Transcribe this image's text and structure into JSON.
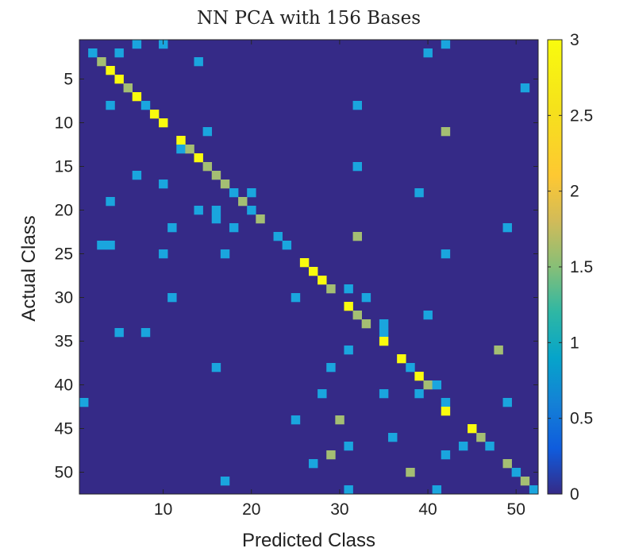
{
  "chart_data": {
    "type": "heatmap",
    "title": "NN PCA with 156 Bases",
    "xlabel": "Predicted Class",
    "ylabel": "Actual Class",
    "n_classes": 52,
    "xlim": [
      1,
      52
    ],
    "ylim": [
      1,
      52
    ],
    "x_ticks": [
      10,
      20,
      30,
      40,
      50
    ],
    "y_ticks": [
      5,
      10,
      15,
      20,
      25,
      30,
      35,
      40,
      45,
      50
    ],
    "colorbar": {
      "range": [
        0,
        3
      ],
      "ticks": [
        0,
        0.5,
        1,
        1.5,
        2,
        2.5,
        3
      ]
    },
    "colormap": "parula",
    "colors": {
      "zero": "#352A87",
      "one": "#1AA5DE",
      "two": "#A4BE73",
      "three": "#F9FB0E"
    },
    "cells": [
      [
        1,
        7,
        1
      ],
      [
        1,
        10,
        1
      ],
      [
        1,
        42,
        1
      ],
      [
        2,
        2,
        1
      ],
      [
        2,
        5,
        1
      ],
      [
        2,
        40,
        1
      ],
      [
        3,
        3,
        2
      ],
      [
        3,
        14,
        1
      ],
      [
        4,
        4,
        3
      ],
      [
        5,
        5,
        3
      ],
      [
        6,
        6,
        2
      ],
      [
        6,
        51,
        1
      ],
      [
        7,
        7,
        3
      ],
      [
        8,
        4,
        1
      ],
      [
        8,
        8,
        1
      ],
      [
        8,
        32,
        1
      ],
      [
        9,
        9,
        3
      ],
      [
        10,
        10,
        3
      ],
      [
        11,
        15,
        1
      ],
      [
        11,
        42,
        2
      ],
      [
        12,
        12,
        3
      ],
      [
        13,
        12,
        1
      ],
      [
        13,
        13,
        2
      ],
      [
        14,
        14,
        3
      ],
      [
        15,
        15,
        2
      ],
      [
        15,
        32,
        1
      ],
      [
        16,
        7,
        1
      ],
      [
        16,
        16,
        2
      ],
      [
        17,
        10,
        1
      ],
      [
        17,
        17,
        2
      ],
      [
        18,
        18,
        1
      ],
      [
        18,
        20,
        1
      ],
      [
        18,
        39,
        1
      ],
      [
        19,
        4,
        1
      ],
      [
        19,
        19,
        2
      ],
      [
        20,
        14,
        1
      ],
      [
        20,
        16,
        1
      ],
      [
        20,
        20,
        1
      ],
      [
        21,
        16,
        1
      ],
      [
        21,
        21,
        2
      ],
      [
        22,
        11,
        1
      ],
      [
        22,
        18,
        1
      ],
      [
        22,
        49,
        1
      ],
      [
        23,
        23,
        1
      ],
      [
        23,
        32,
        2
      ],
      [
        24,
        3,
        1
      ],
      [
        24,
        4,
        1
      ],
      [
        24,
        24,
        1
      ],
      [
        25,
        10,
        1
      ],
      [
        25,
        17,
        1
      ],
      [
        25,
        42,
        1
      ],
      [
        26,
        26,
        3
      ],
      [
        27,
        27,
        3
      ],
      [
        28,
        28,
        3
      ],
      [
        29,
        29,
        2
      ],
      [
        29,
        31,
        1
      ],
      [
        30,
        11,
        1
      ],
      [
        30,
        25,
        1
      ],
      [
        30,
        33,
        1
      ],
      [
        31,
        31,
        3
      ],
      [
        32,
        32,
        2
      ],
      [
        32,
        40,
        1
      ],
      [
        33,
        33,
        2
      ],
      [
        33,
        35,
        1
      ],
      [
        34,
        5,
        1
      ],
      [
        34,
        8,
        1
      ],
      [
        34,
        35,
        1
      ],
      [
        35,
        35,
        3
      ],
      [
        36,
        31,
        1
      ],
      [
        36,
        48,
        2
      ],
      [
        37,
        37,
        3
      ],
      [
        38,
        16,
        1
      ],
      [
        38,
        29,
        1
      ],
      [
        38,
        38,
        1
      ],
      [
        39,
        39,
        3
      ],
      [
        40,
        40,
        2
      ],
      [
        40,
        41,
        1
      ],
      [
        41,
        28,
        1
      ],
      [
        41,
        35,
        1
      ],
      [
        41,
        39,
        1
      ],
      [
        42,
        1,
        1
      ],
      [
        42,
        42,
        1
      ],
      [
        42,
        49,
        1
      ],
      [
        43,
        42,
        3
      ],
      [
        44,
        25,
        1
      ],
      [
        44,
        30,
        2
      ],
      [
        45,
        45,
        3
      ],
      [
        46,
        36,
        1
      ],
      [
        46,
        46,
        2
      ],
      [
        47,
        31,
        1
      ],
      [
        47,
        44,
        1
      ],
      [
        47,
        47,
        1
      ],
      [
        48,
        29,
        2
      ],
      [
        48,
        42,
        1
      ],
      [
        49,
        27,
        1
      ],
      [
        49,
        49,
        2
      ],
      [
        50,
        38,
        2
      ],
      [
        50,
        50,
        1
      ],
      [
        51,
        17,
        1
      ],
      [
        51,
        51,
        2
      ],
      [
        52,
        31,
        1
      ],
      [
        52,
        41,
        1
      ],
      [
        52,
        52,
        1
      ]
    ]
  }
}
